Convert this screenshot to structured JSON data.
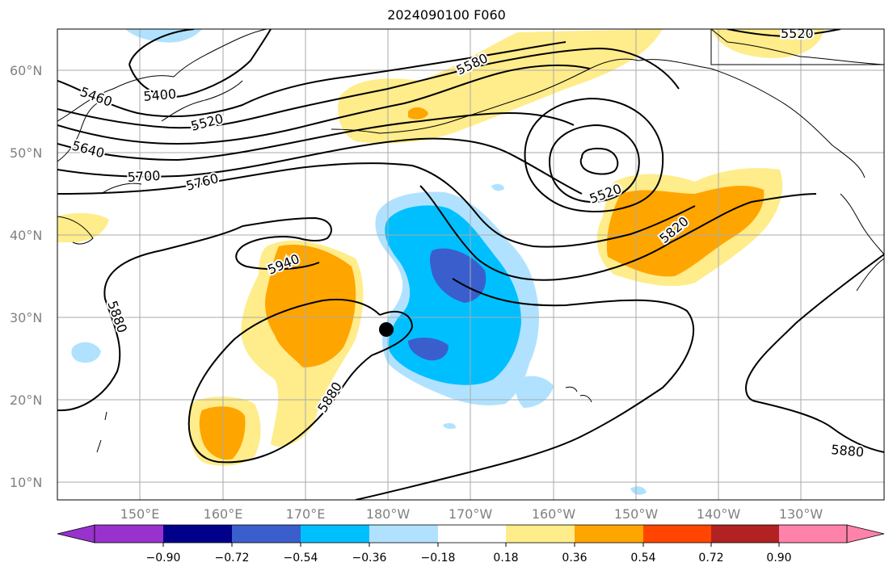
{
  "title": "2024090100 F060",
  "map": {
    "lat_labels": [
      "60°N",
      "50°N",
      "40°N",
      "30°N",
      "20°N",
      "10°N"
    ],
    "lon_labels": [
      "150°E",
      "160°E",
      "170°E",
      "180°W",
      "170°W",
      "160°W",
      "150°W",
      "140°W",
      "130°W"
    ],
    "contour_labels": [
      "5460",
      "5400",
      "5520",
      "5580",
      "5640",
      "5700",
      "5760",
      "5520",
      "5940",
      "5820",
      "5880",
      "5880",
      "5880",
      "5520"
    ],
    "marker": "storm-center-marker"
  },
  "colorbar": {
    "labels": [
      "−0.90",
      "−0.72",
      "−0.54",
      "−0.36",
      "−0.18",
      "0.18",
      "0.36",
      "0.54",
      "0.72",
      "0.90"
    ],
    "colors": [
      "#9932cc",
      "#00008b",
      "#3a5fcd",
      "#00bfff",
      "#b0e2ff",
      "#ffffff",
      "#ffec8b",
      "#ffa500",
      "#ff4500",
      "#b22222",
      "#ff82ab"
    ]
  }
}
